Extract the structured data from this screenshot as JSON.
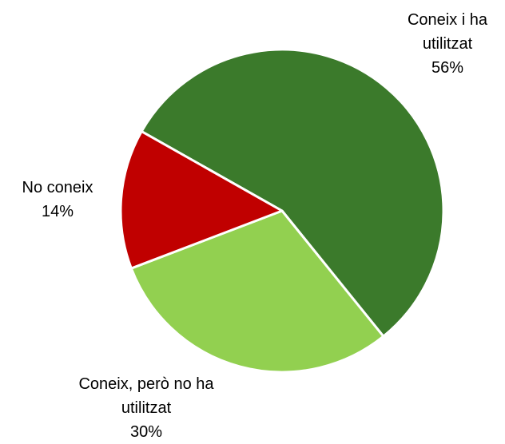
{
  "chart_data": {
    "type": "pie",
    "categories": [
      "Coneix i ha utilitzat",
      "Coneix, però no ha utilitzat",
      "No coneix"
    ],
    "values": [
      56,
      30,
      14
    ],
    "value_labels": [
      "56%",
      "30%",
      "14%"
    ],
    "colors": [
      "#3b7a2b",
      "#92d050",
      "#c00000"
    ]
  }
}
